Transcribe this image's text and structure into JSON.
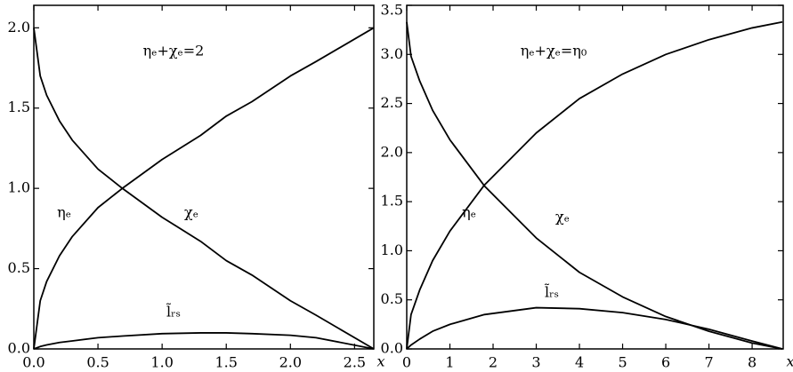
{
  "chart_data": [
    {
      "type": "line",
      "annotation": "ηₑ+χₑ=2",
      "xlabel": "x",
      "x": [
        0,
        0.05,
        0.1,
        0.2,
        0.3,
        0.5,
        0.69,
        1.0,
        1.3,
        1.5,
        1.7,
        2.0,
        2.2,
        2.65
      ],
      "series": [
        {
          "name": "ηₑ",
          "color": "#000000",
          "values": [
            2,
            1.7,
            1.58,
            1.42,
            1.3,
            1.12,
            1.0,
            0.82,
            0.67,
            0.55,
            0.46,
            0.3,
            0.21,
            0
          ]
        },
        {
          "name": "χₑ",
          "color": "#000000",
          "values": [
            0,
            0.3,
            0.42,
            0.58,
            0.7,
            0.88,
            1.0,
            1.18,
            1.33,
            1.45,
            1.54,
            1.7,
            1.79,
            2.0
          ]
        },
        {
          "name": "l̃ᵣₛ",
          "color": "#000000",
          "values": [
            0,
            0.015,
            0.025,
            0.04,
            0.05,
            0.07,
            0.08,
            0.095,
            0.1,
            0.1,
            0.095,
            0.085,
            0.07,
            0
          ]
        }
      ],
      "xlim": [
        0,
        2.65
      ],
      "ylim": [
        0,
        2.14
      ],
      "xticks": [
        {
          "value": 0,
          "label": "0.0"
        },
        {
          "value": 0.5,
          "label": "0.5"
        },
        {
          "value": 1,
          "label": "1.0"
        },
        {
          "value": 1.5,
          "label": "1.5"
        },
        {
          "value": 2,
          "label": "2.0"
        },
        {
          "value": 2.5,
          "label": "2.5"
        }
      ],
      "yticks": [
        {
          "value": 0,
          "label": "0.0"
        },
        {
          "value": 0.5,
          "label": "0.5"
        },
        {
          "value": 1,
          "label": "1.0"
        },
        {
          "value": 1.5,
          "label": "1.5"
        },
        {
          "value": 2,
          "label": "2.0"
        }
      ]
    },
    {
      "type": "line",
      "annotation": "ηₑ+χₑ=η₀",
      "xlabel": "x",
      "x": [
        0,
        0.1,
        0.3,
        0.6,
        1.0,
        1.8,
        3,
        4,
        5,
        6,
        7,
        8,
        8.7
      ],
      "series": [
        {
          "name": "ηₑ",
          "color": "#000000",
          "values": [
            3.33,
            2.98,
            2.73,
            2.43,
            2.13,
            1.66,
            1.13,
            0.78,
            0.53,
            0.33,
            0.18,
            0.06,
            0
          ]
        },
        {
          "name": "χₑ",
          "color": "#000000",
          "values": [
            0,
            0.35,
            0.6,
            0.9,
            1.2,
            1.67,
            2.2,
            2.55,
            2.8,
            3.0,
            3.15,
            3.27,
            3.33
          ]
        },
        {
          "name": "l̃ᵣₛ",
          "color": "#000000",
          "values": [
            0,
            0.04,
            0.1,
            0.18,
            0.25,
            0.35,
            0.42,
            0.41,
            0.37,
            0.3,
            0.2,
            0.08,
            0
          ]
        }
      ],
      "xlim": [
        0,
        8.72
      ],
      "ylim": [
        0,
        3.5
      ],
      "xticks": [
        0,
        1,
        2,
        3,
        4,
        5,
        6,
        7,
        8
      ],
      "yticks": [
        {
          "value": 0,
          "label": "0.0"
        },
        {
          "value": 0.5,
          "label": "0.5"
        },
        {
          "value": 1,
          "label": "1.0"
        },
        {
          "value": 1.5,
          "label": "1.5"
        },
        {
          "value": 2,
          "label": "2.0"
        },
        {
          "value": 2.5,
          "label": "2.5"
        },
        {
          "value": 3,
          "label": "3.0"
        },
        {
          "value": 3.5,
          "label": "3.5"
        }
      ]
    }
  ]
}
